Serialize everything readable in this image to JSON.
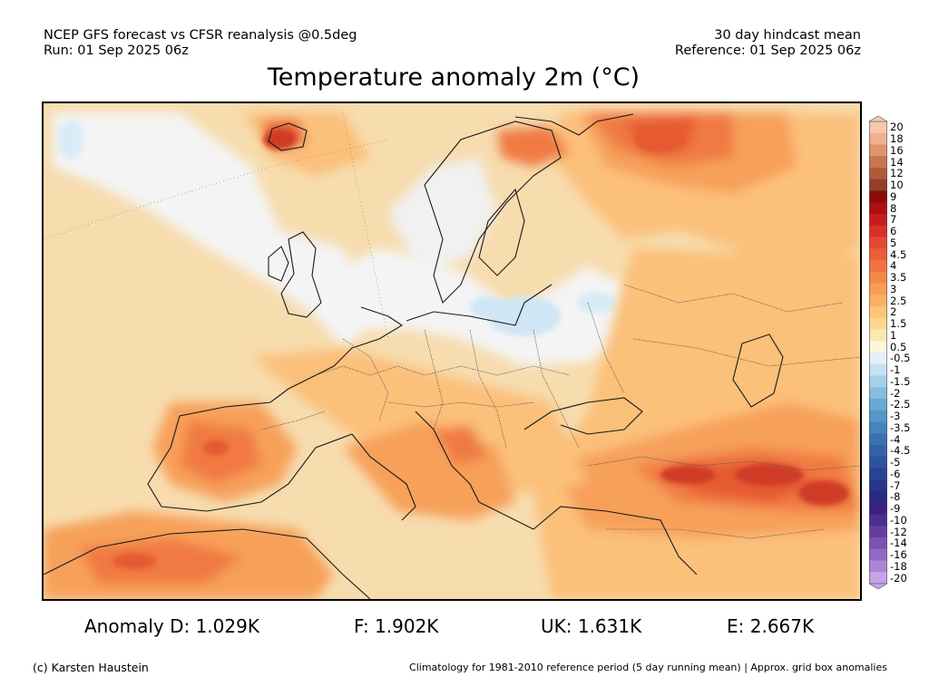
{
  "header": {
    "line1_left": "NCEP GFS forecast vs CFSR reanalysis @0.5deg",
    "line2_left": "Run: 01 Sep 2025 06z",
    "line1_right": "30 day hindcast mean",
    "line2_right": "Reference: 01 Sep 2025 06z"
  },
  "title": "Temperature anomaly 2m (°C)",
  "colorbar": {
    "labels": [
      "20",
      "18",
      "16",
      "14",
      "12",
      "10",
      "9",
      "8",
      "7",
      "6",
      "5",
      "4.5",
      "4",
      "3.5",
      "3",
      "2.5",
      "2",
      "1.5",
      "1",
      "0.5",
      "-0.5",
      "-1",
      "-1.5",
      "-2",
      "-2.5",
      "-3",
      "-3.5",
      "-4",
      "-4.5",
      "-5",
      "-6",
      "-7",
      "-8",
      "-9",
      "-10",
      "-12",
      "-14",
      "-16",
      "-18",
      "-20"
    ],
    "colors": [
      "#f6c7b0",
      "#eeb08f",
      "#df9470",
      "#c97552",
      "#b05a3b",
      "#933f2a",
      "#8e0a0a",
      "#ad0f12",
      "#c81c1b",
      "#dc2f27",
      "#e44a31",
      "#eb5e38",
      "#f0733f",
      "#f58847",
      "#f89c54",
      "#fbb064",
      "#fdc478",
      "#fed690",
      "#fde7ad",
      "#fff6d8",
      "#e2f0f8",
      "#c5e2f2",
      "#a4d0e9",
      "#84bddf",
      "#68a9d4",
      "#5496c8",
      "#4584bd",
      "#3a72b1",
      "#3362a7",
      "#2d539f",
      "#2a4396",
      "#28348d",
      "#2a2985",
      "#36237f",
      "#4d2e8e",
      "#643e9f",
      "#7b52b2",
      "#9368c4",
      "#ad84d7",
      "#c7a3e8"
    ],
    "icon": "colorbar-triangle-ends"
  },
  "stats": {
    "d": "Anomaly D: 1.029K",
    "f": "F: 1.902K",
    "uk": "UK: 1.631K",
    "e": "E: 2.667K"
  },
  "footer": {
    "left": "(c) Karsten Haustein",
    "right": "Climatology for 1981-2010 reference period (5 day running mean) | Approx. grid box anomalies"
  },
  "map": {
    "region": "Europe",
    "colors": {
      "ocean_base": "#f7dcae",
      "near_zero": "#f4f4f4",
      "light_blue": "#cfe6f4",
      "anom_1": "#fde7ad",
      "anom_2": "#fbc07a",
      "anom_3": "#f7a05a",
      "anom_4": "#f07a42",
      "anom_5": "#e65a32",
      "anom_6": "#cf3a26",
      "coast": "#1a1a1a",
      "borders": "#555555"
    }
  }
}
